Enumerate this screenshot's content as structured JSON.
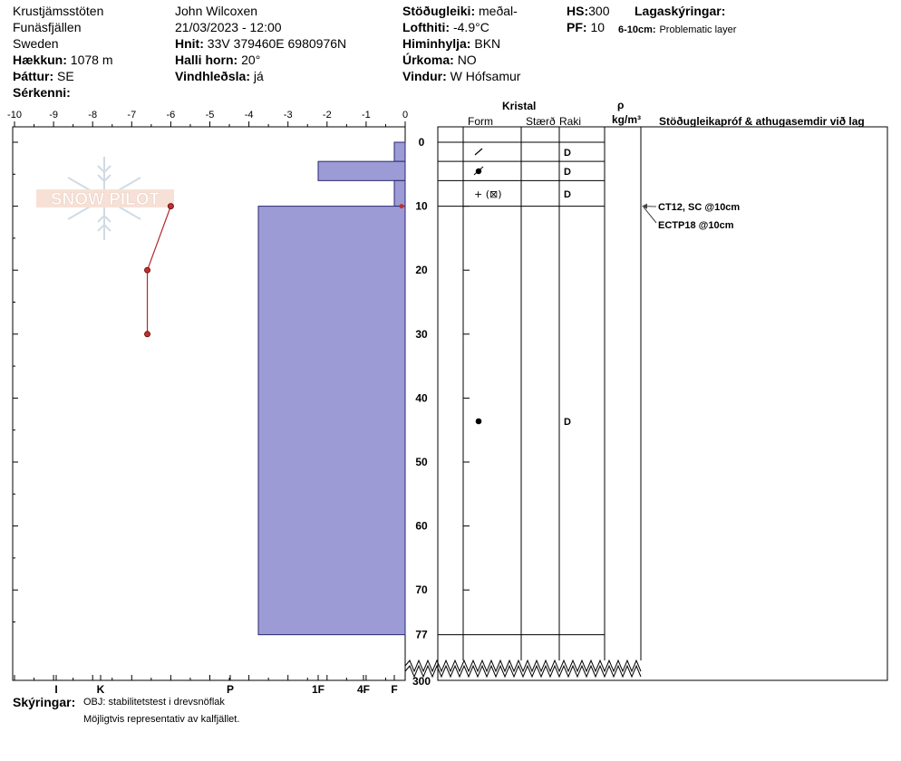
{
  "header": {
    "location": "Krustjämsstöten",
    "region": "Funäsfjällen",
    "country": "Sweden",
    "elevation_label": "Hækkun:",
    "elevation": "1078 m",
    "aspect_label": "Þáttur:",
    "aspect": "SE",
    "features_label": "Sérkenni:",
    "observer": "John Wilcoxen",
    "datetime": "21/03/2023 - 12:00",
    "coords_label": "Hnit:",
    "coords": "33V 379460E 6980976N",
    "slope_label": "Halli horn:",
    "slope": "20°",
    "wind_loading_label": "Vindhleðsla:",
    "wind_loading": "já",
    "stability_label": "Stöðugleiki:",
    "stability": "meðal-",
    "air_temp_label": "Lofthiti:",
    "air_temp": "-4.9°C",
    "sky_label": "Himinhylja:",
    "sky": "BKN",
    "precip_label": "Úrkoma:",
    "precip": "NO",
    "wind_label": "Vindur:",
    "wind": "W Hófsamur",
    "hs_label": "HS:",
    "hs": "300",
    "pf_label": "PF:",
    "pf": "10",
    "layer_notes_label": "Lagaskýringar:",
    "layer_note_depth": "6-10cm:",
    "layer_note_text": "Problematic layer"
  },
  "columns": {
    "crystal": "Kristal",
    "form": "Form",
    "size": "Stærð",
    "moisture": "Raki",
    "rho": "ρ",
    "density_unit": "kg/m³",
    "tests": "Stöðugleikapróf & athugasemdir við lag"
  },
  "footer": {
    "label": "Skýringar:",
    "line1": "OBJ: stabilitetstest i drevsnöflak",
    "line2": "Möjligtvis representativ av kalfjället."
  },
  "watermark": "SNOW PILOT",
  "chart_data": {
    "type": "snow-profile",
    "temperature_axis": {
      "ticks": [
        -10,
        -9,
        -8,
        -7,
        -6,
        -5,
        -4,
        -3,
        -2,
        -1,
        0
      ],
      "range": [
        -10,
        0
      ]
    },
    "depth_axis": {
      "ticks": [
        0,
        10,
        20,
        30,
        40,
        50,
        60,
        70,
        77
      ],
      "range": [
        0,
        77
      ],
      "bottom_label": "300"
    },
    "hardness_axis": {
      "ticks": [
        "I",
        "K",
        "P",
        "1F",
        "4F",
        "F"
      ]
    },
    "temperature_profile": [
      {
        "depth": 10,
        "temp": -6.0
      },
      {
        "depth": 20,
        "temp": -6.6
      },
      {
        "depth": 30,
        "temp": -6.6
      }
    ],
    "layers": [
      {
        "top": 0,
        "bottom": 3,
        "hardness": "F",
        "form": "",
        "moisture": "D"
      },
      {
        "top": 3,
        "bottom": 6,
        "hardness": "1F",
        "form": "decomposing-fragments",
        "moisture": "D"
      },
      {
        "top": 6,
        "bottom": 10,
        "hardness": "F",
        "form": "precipitation-particles-and-faceted",
        "moisture": "D"
      },
      {
        "top": 10,
        "bottom": 77,
        "hardness": "P-",
        "form": "rounded-grains",
        "moisture": "D"
      }
    ],
    "tests": [
      {
        "label": "CT12, SC @10cm",
        "depth": 10
      },
      {
        "label": "ECTP18 @10cm",
        "depth": 10
      }
    ]
  }
}
